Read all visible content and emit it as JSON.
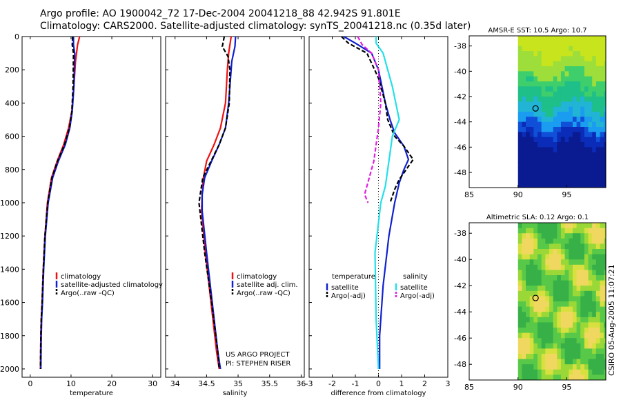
{
  "title_line1": "Argo profile: AO 1900042_72 17-Dec-2004 20041218_88 42.942S 91.801E",
  "title_line2": "Climatology: CARS2000. Satellite-adjusted climatology: synTS_20041218.nc (0.35d later)",
  "credit": "CSIRO 05-Aug-2005 11:07:21",
  "colors": {
    "climatology": "#ee1111",
    "satellite": "#1020d0",
    "argo": "#000000",
    "salinity_sat": "#22e0e8",
    "salinity_argo": "#e020e0"
  },
  "chart_data": [
    {
      "type": "line",
      "id": "temperature",
      "xlabel": "temperature",
      "ylabel": "",
      "xlim": [
        -2,
        32
      ],
      "ylim": [
        2050,
        0
      ],
      "xticks": [
        "0",
        "10",
        "20",
        "30"
      ],
      "xtick_values": [
        0,
        10,
        20,
        30
      ],
      "yticks": [
        "0",
        "200",
        "400",
        "600",
        "800",
        "1000",
        "1200",
        "1400",
        "1600",
        "1800",
        "2000"
      ],
      "ytick_values": [
        0,
        200,
        400,
        600,
        800,
        1000,
        1200,
        1400,
        1600,
        1800,
        2000
      ],
      "legend": [
        "climatology",
        "satellite-adjusted climatology",
        "Argo(..raw -QC)"
      ],
      "legend_colors": [
        "#ee1111",
        "#1020d0",
        "#000000"
      ],
      "legend_position": "lower-right",
      "series": [
        {
          "name": "climatology",
          "color": "#ee1111",
          "dash": false,
          "x": [
            12.1,
            11.6,
            11.1,
            10.7,
            10.2,
            9.4,
            8.2,
            6.6,
            5.2,
            4.2,
            3.6,
            3.2,
            2.9,
            2.7,
            2.6,
            2.5
          ],
          "y": [
            0,
            50,
            150,
            300,
            450,
            550,
            650,
            750,
            850,
            1000,
            1200,
            1400,
            1600,
            1700,
            1800,
            2000
          ]
        },
        {
          "name": "satellite-adjusted climatology",
          "color": "#1020d0",
          "dash": false,
          "x": [
            10.6,
            10.6,
            10.9,
            10.7,
            10.3,
            9.7,
            8.6,
            6.9,
            5.5,
            4.4,
            3.7,
            3.3,
            3.0,
            2.8,
            2.7,
            2.6
          ],
          "y": [
            0,
            50,
            100,
            300,
            450,
            550,
            650,
            750,
            850,
            1000,
            1200,
            1400,
            1600,
            1700,
            1800,
            2000
          ]
        },
        {
          "name": "Argo(..raw -QC)",
          "color": "#000000",
          "dash": true,
          "x": [
            10.4,
            10.3,
            10.6,
            10.5,
            10.2,
            9.6,
            8.4,
            6.7,
            5.3,
            4.3,
            3.6,
            3.2,
            2.9,
            2.7,
            2.6,
            2.5
          ],
          "y": [
            0,
            50,
            100,
            300,
            450,
            550,
            650,
            750,
            850,
            1000,
            1200,
            1400,
            1600,
            1700,
            1800,
            2000
          ]
        }
      ]
    },
    {
      "type": "line",
      "id": "salinity",
      "xlabel": "salinity",
      "ylabel": "",
      "xlim": [
        33.85,
        36.05
      ],
      "ylim": [
        2050,
        0
      ],
      "xticks": [
        "34",
        "34.5",
        "35",
        "35.5",
        "36"
      ],
      "xtick_values": [
        34,
        34.5,
        35,
        35.5,
        36
      ],
      "yticks": [],
      "legend": [
        "climatology",
        "satellite adj. clim.",
        "Argo(..raw -QC)"
      ],
      "legend_colors": [
        "#ee1111",
        "#1020d0",
        "#000000"
      ],
      "legend_position": "lower-right",
      "annotation": [
        "US ARGO PROJECT",
        "PI: STEPHEN RISER"
      ],
      "series": [
        {
          "name": "climatology",
          "color": "#ee1111",
          "dash": false,
          "x": [
            34.89,
            34.85,
            34.83,
            34.8,
            34.72,
            34.62,
            34.5,
            34.45,
            34.43,
            34.42,
            34.48,
            34.57,
            34.66,
            34.7
          ],
          "y": [
            0,
            100,
            200,
            400,
            550,
            650,
            750,
            850,
            950,
            1050,
            1300,
            1600,
            1900,
            2000
          ]
        },
        {
          "name": "satellite adj. clim.",
          "color": "#1020d0",
          "dash": false,
          "x": [
            34.96,
            34.95,
            34.9,
            34.85,
            34.8,
            34.7,
            34.58,
            34.47,
            34.43,
            34.43,
            34.5,
            34.59,
            34.68,
            34.72
          ],
          "y": [
            0,
            60,
            150,
            400,
            550,
            650,
            750,
            850,
            950,
            1050,
            1300,
            1600,
            1900,
            2000
          ]
        },
        {
          "name": "Argo(..raw -QC)",
          "color": "#000000",
          "dash": true,
          "x": [
            34.78,
            34.75,
            34.84,
            34.87,
            34.86,
            34.8,
            34.7,
            34.57,
            34.44,
            34.4,
            34.38,
            34.47,
            34.58,
            34.68,
            34.7
          ],
          "y": [
            0,
            60,
            120,
            200,
            400,
            550,
            650,
            750,
            850,
            950,
            1000,
            1300,
            1600,
            1900,
            2000
          ]
        }
      ]
    },
    {
      "type": "line",
      "id": "difference",
      "xlabel": "difference from climatology",
      "ylabel": "",
      "xlim": [
        -3,
        3
      ],
      "ylim": [
        2050,
        0
      ],
      "xticks": [
        "-3",
        "-2",
        "-1",
        "0",
        "1",
        "2",
        "3"
      ],
      "xtick_values": [
        -3,
        -2,
        -1,
        0,
        1,
        2,
        3
      ],
      "yticks": [],
      "legend_left_header": "temperature",
      "legend_right_header": "salinity",
      "legend_left": [
        "satellite",
        "Argo(-adj)"
      ],
      "legend_left_colors": [
        "#1020d0",
        "#000000"
      ],
      "legend_right": [
        "satellite",
        "Argo(-adj)"
      ],
      "legend_right_colors": [
        "#22e0e8",
        "#e020e0"
      ],
      "legend_position": "lower",
      "series": [
        {
          "name": "temperature satellite",
          "color": "#1020d0",
          "dash": false,
          "x": [
            -1.5,
            -1.0,
            -0.3,
            0.0,
            0.3,
            0.5,
            0.7,
            1.1,
            1.3,
            1.1,
            0.9,
            0.7,
            0.45,
            0.2,
            0.05,
            0.05
          ],
          "y": [
            0,
            40,
            100,
            200,
            400,
            500,
            580,
            660,
            740,
            800,
            880,
            1000,
            1200,
            1500,
            1800,
            2000
          ]
        },
        {
          "name": "temperature Argo(-adj)",
          "color": "#000000",
          "dash": true,
          "x": [
            -1.6,
            -1.3,
            -0.5,
            0.0,
            0.3,
            0.4,
            0.7,
            1.1,
            1.5,
            1.2,
            0.9,
            0.7,
            0.5
          ],
          "y": [
            0,
            40,
            100,
            250,
            400,
            500,
            600,
            660,
            740,
            800,
            860,
            920,
            1000
          ]
        },
        {
          "name": "salinity satellite",
          "color": "#22e0e8",
          "dash": false,
          "x": [
            -0.1,
            -0.1,
            0.2,
            0.6,
            0.9,
            0.6,
            0.5,
            0.4,
            0.3,
            0.1,
            -0.15,
            -0.1,
            0.0
          ],
          "y": [
            0,
            40,
            100,
            300,
            500,
            600,
            700,
            800,
            900,
            1000,
            1300,
            1700,
            2000
          ]
        },
        {
          "name": "salinity Argo(-adj)",
          "color": "#e020e0",
          "dash": true,
          "x": [
            -0.9,
            -0.7,
            -0.3,
            0.0,
            0.1,
            0.0,
            -0.1,
            -0.2,
            -0.4,
            -0.6,
            -0.45
          ],
          "y": [
            0,
            50,
            100,
            200,
            400,
            550,
            650,
            750,
            850,
            950,
            1000
          ]
        }
      ]
    },
    {
      "type": "heatmap",
      "id": "sst_map",
      "title": "AMSR-E SST: 10.5 Argo: 10.7",
      "xlim": [
        85,
        99
      ],
      "ylim": [
        -49.2,
        -37.2
      ],
      "xticks": [
        "85",
        "90",
        "95"
      ],
      "xtick_values": [
        85,
        90,
        95
      ],
      "yticks": [
        "-38",
        "-40",
        "-42",
        "-44",
        "-46",
        "-48"
      ],
      "ytick_values": [
        -38,
        -40,
        -42,
        -44,
        -46,
        -48
      ],
      "data_lon_range": [
        90,
        99
      ],
      "profile_marker": {
        "lon": 91.8,
        "lat": -42.94
      }
    },
    {
      "type": "heatmap",
      "id": "sla_map",
      "title": "Altimetric SLA: 0.12 Argo: 0.1",
      "xlim": [
        85,
        99
      ],
      "ylim": [
        -49.2,
        -37.2
      ],
      "xticks": [
        "85",
        "90",
        "95"
      ],
      "xtick_values": [
        85,
        90,
        95
      ],
      "yticks": [
        "-38",
        "-40",
        "-42",
        "-44",
        "-46",
        "-48"
      ],
      "ytick_values": [
        -38,
        -40,
        -42,
        -44,
        -46,
        -48
      ],
      "data_lon_range": [
        90,
        99
      ],
      "profile_marker": {
        "lon": 91.8,
        "lat": -42.94
      }
    }
  ]
}
